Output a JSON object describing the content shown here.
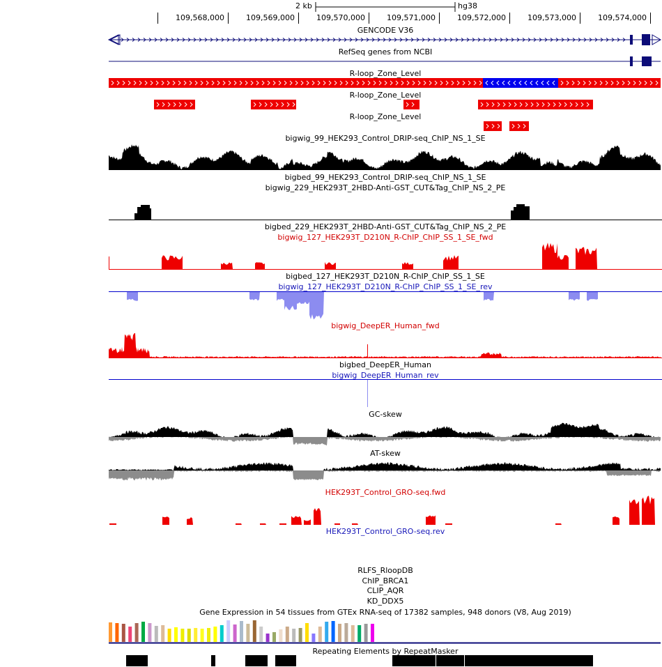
{
  "scale_bar": {
    "length_label": "2 kb",
    "assembly": "hg38"
  },
  "ruler": {
    "positions": [
      "109,568,000",
      "109,569,000",
      "109,570,000",
      "109,571,000",
      "109,572,000",
      "109,573,000",
      "109,574,000"
    ]
  },
  "tracks": {
    "gencode": "GENCODE V36",
    "refseq": "RefSeq genes from NCBI",
    "rloop_1": "R-loop_Zone_Level",
    "rloop_2": "R-loop_Zone_Level",
    "rloop_3": "R-loop_Zone_Level",
    "bigwig_99": "bigwig_99_HEK293_Control_DRIP-seq_ChIP_NS_1_SE",
    "bigbed_99": "bigbed_99_HEK293_Control_DRIP-seq_ChIP_NS_1_SE",
    "bigwig_229": "bigwig_229_HEK293T_2HBD-Anti-GST_CUT&Tag_ChIP_NS_2_PE",
    "bigbed_229": "bigbed_229_HEK293T_2HBD-Anti-GST_CUT&Tag_ChIP_NS_2_PE",
    "bigwig_127_fwd": "bigwig_127_HEK293T_D210N_R-ChIP_ChIP_SS_1_SE_fwd",
    "bigbed_127": "bigbed_127_HEK293T_D210N_R-ChIP_ChIP_SS_1_SE",
    "bigwig_127_rev": "bigwig_127_HEK293T_D210N_R-ChIP_ChIP_SS_1_SE_rev",
    "deeper_fwd": "bigwig_DeepER_Human_fwd",
    "deeper_bed": "bigbed_DeepER_Human",
    "deeper_rev": "bigwig_DeepER_Human_rev",
    "gc_skew": "GC-skew",
    "at_skew": "AT-skew",
    "gro_fwd": "HEK293T_Control_GRO-seq.fwd",
    "gro_rev": "HEK293T_Control_GRO-seq.rev",
    "rlfs": "RLFS_RloopDB",
    "chip_brca1": "ChIP_BRCA1",
    "clip_aqr": "CLIP_AQR",
    "kd_ddx5": "KD_DDX5",
    "gtex": "Gene Expression in 54 tissues from GTEx RNA-seq of 17382 samples, 948 donors (V8, Aug 2019)",
    "repeatmasker": "Repeating Elements by RepeatMasker"
  },
  "colors": {
    "navy": "#0c0c78",
    "rloop_fwd": "#ee0000",
    "rloop_rev": "#0000ee",
    "chip_black": "#000000",
    "fwd_red": "#ee0000",
    "rev_blue": "#8c8cf0",
    "skew_neg_gray": "#8c8c8c"
  }
}
